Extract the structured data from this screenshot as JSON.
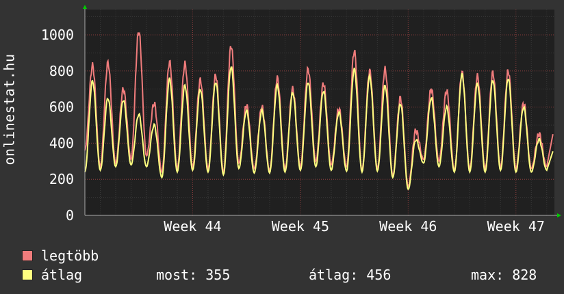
{
  "y_axis_title": "onlinestat.hu",
  "legend": [
    {
      "label": "legtöbb",
      "color": "#f07c7c"
    },
    {
      "label": "átlag",
      "color": "#ffff80"
    }
  ],
  "stats": {
    "most_label": "most:",
    "most_value": "355",
    "atlag_label": "átlag:",
    "atlag_value": "456",
    "max_label": "max:",
    "max_value": "828"
  },
  "colors": {
    "background": "#333333",
    "plot_background": "#202020",
    "grid": "#8a3a3a",
    "axis": "#aaaaaa",
    "arrow": "#00cc00"
  },
  "chart_data": {
    "type": "line",
    "title": "",
    "ylabel": "onlinestat.hu",
    "xlabel": "",
    "ylim": [
      0,
      1140
    ],
    "xlim": [
      0,
      30.5
    ],
    "y_ticks": [
      0,
      200,
      400,
      600,
      800,
      1000
    ],
    "x_unit": "days",
    "x_ticks": [
      {
        "label": "Week 44",
        "x": 7
      },
      {
        "label": "Week 45",
        "x": 14
      },
      {
        "label": "Week 46",
        "x": 21
      },
      {
        "label": "Week 47",
        "x": 28
      }
    ],
    "grid": true,
    "legend_position": "bottom-left",
    "daily_peaks": [
      {
        "max": 830,
        "avg": 745
      },
      {
        "max": 845,
        "avg": 650
      },
      {
        "max": 700,
        "avg": 640
      },
      {
        "max": 1020,
        "avg": 560
      },
      {
        "max": 620,
        "avg": 500
      },
      {
        "max": 850,
        "avg": 755
      },
      {
        "max": 840,
        "avg": 720
      },
      {
        "max": 750,
        "avg": 700
      },
      {
        "max": 775,
        "avg": 740
      },
      {
        "max": 940,
        "avg": 825
      },
      {
        "max": 610,
        "avg": 580
      },
      {
        "max": 600,
        "avg": 580
      },
      {
        "max": 760,
        "avg": 720
      },
      {
        "max": 700,
        "avg": 680
      },
      {
        "max": 810,
        "avg": 740
      },
      {
        "max": 730,
        "avg": 690
      },
      {
        "max": 590,
        "avg": 570
      },
      {
        "max": 910,
        "avg": 810
      },
      {
        "max": 800,
        "avg": 770
      },
      {
        "max": 810,
        "avg": 720
      },
      {
        "max": 650,
        "avg": 620
      },
      {
        "max": 470,
        "avg": 420
      },
      {
        "max": 700,
        "avg": 650
      },
      {
        "max": 690,
        "avg": 600
      },
      {
        "max": 790,
        "avg": 780
      },
      {
        "max": 770,
        "avg": 730
      },
      {
        "max": 790,
        "avg": 750
      },
      {
        "max": 800,
        "avg": 760
      },
      {
        "max": 620,
        "avg": 600
      },
      {
        "max": 450,
        "avg": 420
      }
    ],
    "daily_troughs": [
      {
        "max": 360,
        "avg": 240
      },
      {
        "max": 270,
        "avg": 250
      },
      {
        "max": 290,
        "avg": 270
      },
      {
        "max": 310,
        "avg": 280
      },
      {
        "max": 330,
        "avg": 270
      },
      {
        "max": 240,
        "avg": 210
      },
      {
        "max": 260,
        "avg": 240
      },
      {
        "max": 270,
        "avg": 250
      },
      {
        "max": 260,
        "avg": 240
      },
      {
        "max": 240,
        "avg": 225
      },
      {
        "max": 290,
        "avg": 260
      },
      {
        "max": 260,
        "avg": 235
      },
      {
        "max": 250,
        "avg": 235
      },
      {
        "max": 260,
        "avg": 240
      },
      {
        "max": 270,
        "avg": 250
      },
      {
        "max": 300,
        "avg": 270
      },
      {
        "max": 280,
        "avg": 250
      },
      {
        "max": 270,
        "avg": 245
      },
      {
        "max": 250,
        "avg": 240
      },
      {
        "max": 260,
        "avg": 245
      },
      {
        "max": 220,
        "avg": 210
      },
      {
        "max": 160,
        "avg": 145
      },
      {
        "max": 310,
        "avg": 290
      },
      {
        "max": 300,
        "avg": 270
      },
      {
        "max": 250,
        "avg": 240
      },
      {
        "max": 260,
        "avg": 240
      },
      {
        "max": 260,
        "avg": 240
      },
      {
        "max": 270,
        "avg": 250
      },
      {
        "max": 260,
        "avg": 240
      },
      {
        "max": 260,
        "avg": 240
      },
      {
        "max": 270,
        "avg": 250
      }
    ],
    "series": [
      {
        "name": "legtöbb",
        "color": "#f07c7c"
      },
      {
        "name": "átlag",
        "color": "#ffff80"
      }
    ]
  }
}
